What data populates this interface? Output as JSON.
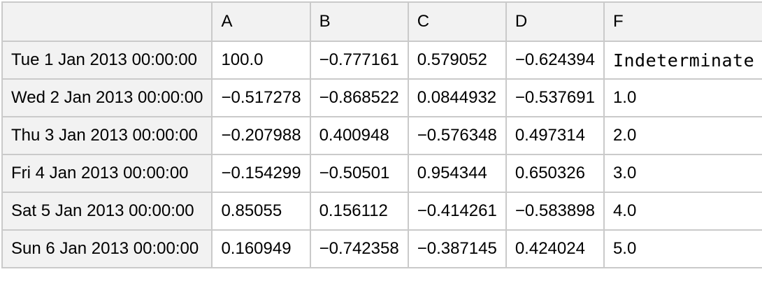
{
  "chart_data": {
    "type": "table",
    "title": "",
    "columns": [
      "",
      "A",
      "B",
      "C",
      "D",
      "F"
    ],
    "rows": [
      {
        "label": "Tue 1 Jan 2013 00:00:00",
        "cells": [
          "100.0",
          "−0.777161",
          "0.579052",
          "−0.624394",
          "Indeterminate"
        ]
      },
      {
        "label": "Wed 2 Jan 2013 00:00:00",
        "cells": [
          "−0.517278",
          "−0.868522",
          "0.0844932",
          "−0.537691",
          "1.0"
        ]
      },
      {
        "label": "Thu 3 Jan 2013 00:00:00",
        "cells": [
          "−0.207988",
          "0.400948",
          "−0.576348",
          "0.497314",
          "2.0"
        ]
      },
      {
        "label": "Fri 4 Jan 2013 00:00:00",
        "cells": [
          "−0.154299",
          "−0.50501",
          "0.954344",
          "0.650326",
          "3.0"
        ]
      },
      {
        "label": "Sat 5 Jan 2013 00:00:00",
        "cells": [
          "0.85055",
          "0.156112",
          "−0.414261",
          "−0.583898",
          "4.0"
        ]
      },
      {
        "label": "Sun 6 Jan 2013 00:00:00",
        "cells": [
          "0.160949",
          "−0.742358",
          "−0.387145",
          "0.424024",
          "5.0"
        ]
      }
    ],
    "special_value": "Indeterminate",
    "layout": {
      "grid": "on",
      "header_row": true,
      "row_label_column": true
    },
    "colors": {
      "header_bg": "#f2f2f2",
      "row_label_bg": "#f2f2f2",
      "cell_bg": "#ffffff",
      "grid_line": "#cacaca",
      "outer_frame": "#bcbcbc",
      "text": "#000000"
    }
  }
}
